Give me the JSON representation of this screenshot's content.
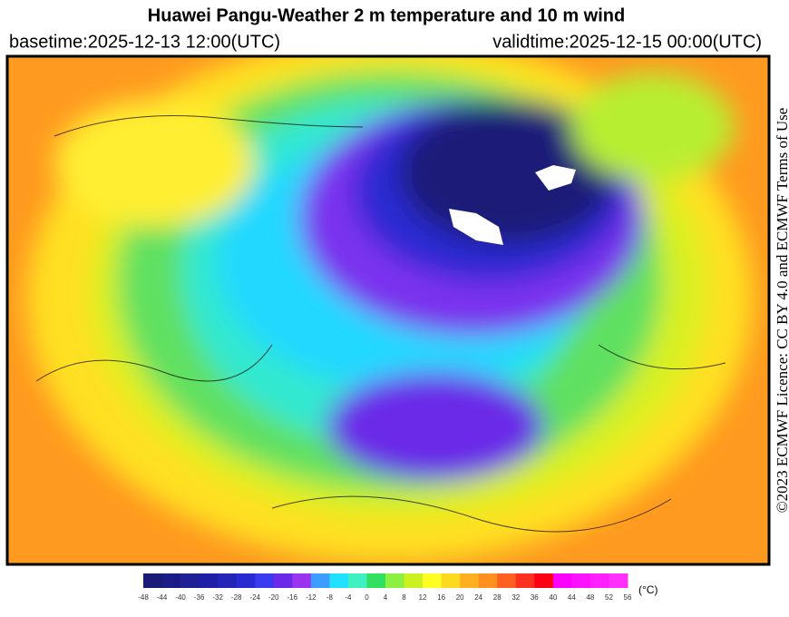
{
  "header": {
    "title": "Huawei Pangu-Weather  2 m temperature and 10 m wind",
    "basetime": "basetime:2025-12-13 12:00(UTC)",
    "validtime": "validtime:2025-12-15 00:00(UTC)"
  },
  "licence": "©2023 ECMWF Licence: CC BY 4.0 and ECMWF Terms of Use",
  "colorbar": {
    "unit": "(°C)",
    "ticks": [
      -48,
      -44,
      -40,
      -36,
      -32,
      -28,
      -24,
      -20,
      -16,
      -12,
      -8,
      -4,
      0,
      4,
      8,
      12,
      16,
      20,
      24,
      28,
      32,
      36,
      40,
      44,
      48,
      52,
      56
    ],
    "colors": [
      "#1a1a78",
      "#1c1c88",
      "#202096",
      "#1e1ea6",
      "#2424b6",
      "#2a2ad2",
      "#3a3af0",
      "#6a2ae8",
      "#9a34f0",
      "#3c9cff",
      "#22e0ff",
      "#3ff0c0",
      "#30e060",
      "#8cf040",
      "#ccf020",
      "#ffff22",
      "#ffd820",
      "#ffb020",
      "#ff9020",
      "#ff6020",
      "#ff3020",
      "#ff0010",
      "#ff00ff",
      "#ff10ff",
      "#ff20ff",
      "#ff30ff"
    ]
  }
}
